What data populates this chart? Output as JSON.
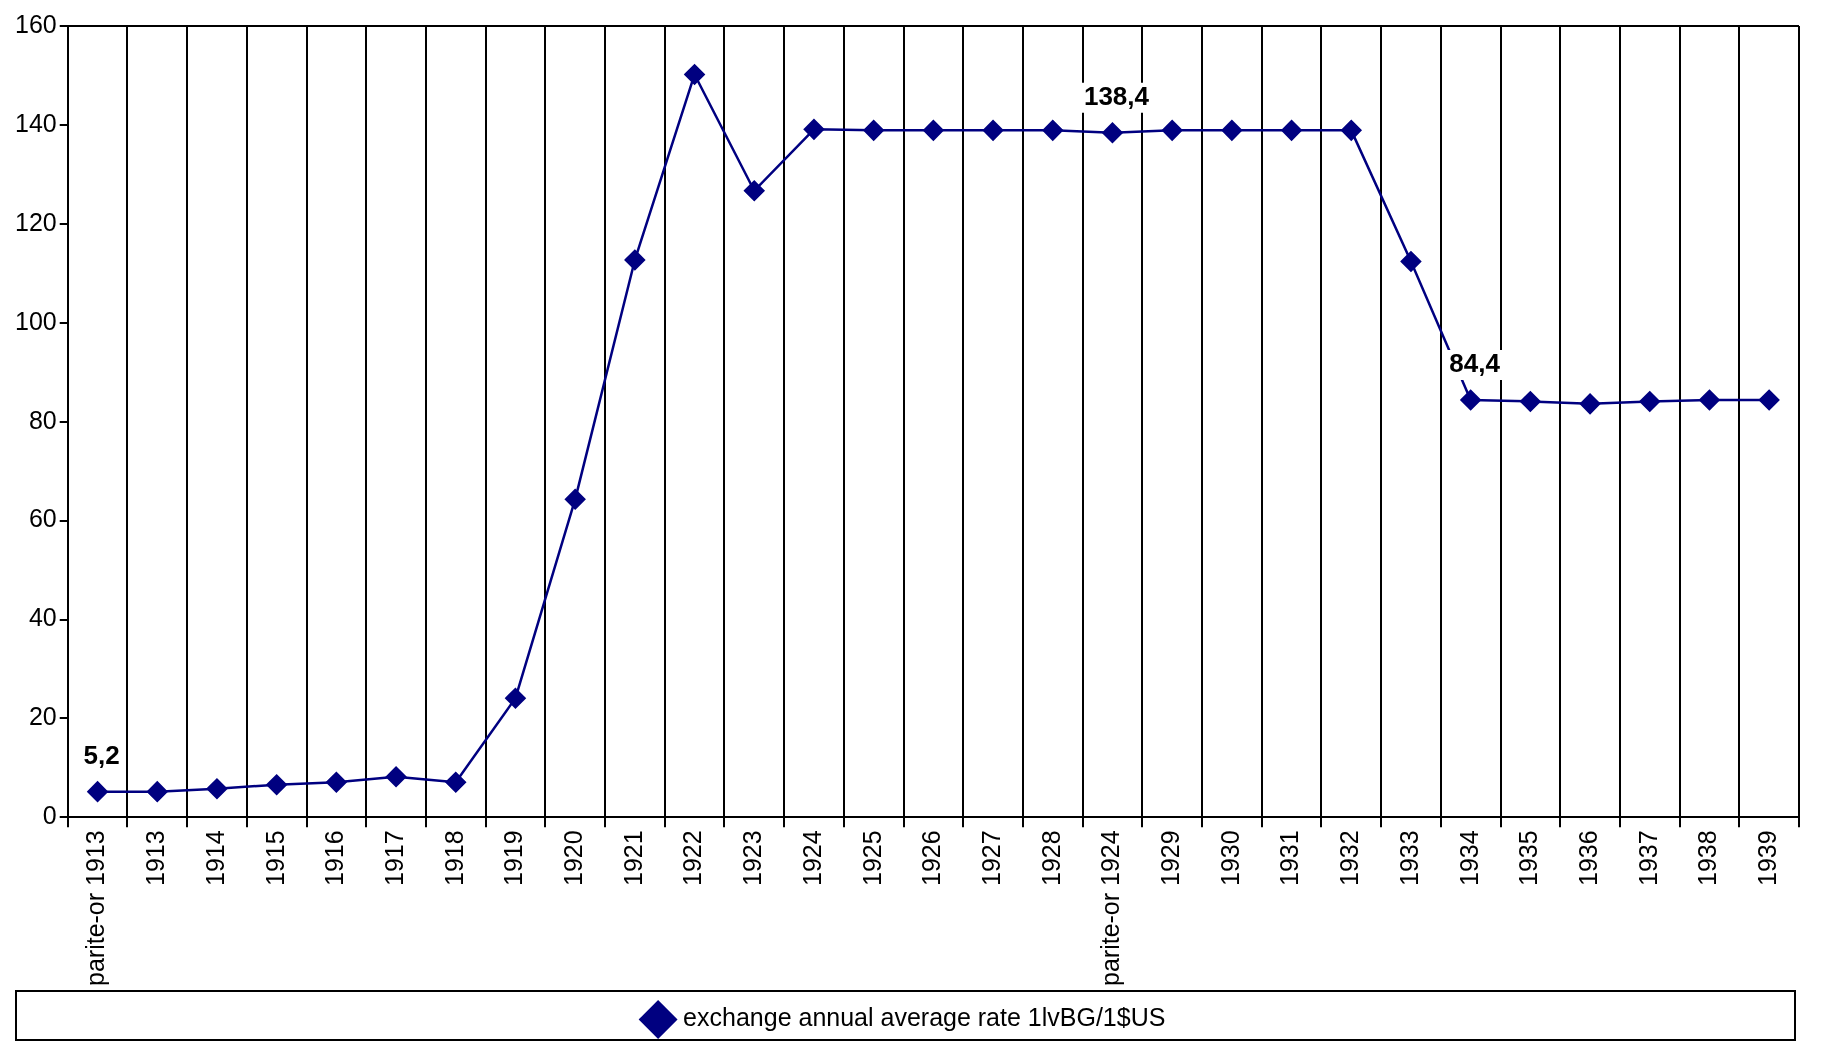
{
  "chart_data": {
    "type": "line",
    "categories": [
      "parite-or 1913",
      "1913",
      "1914",
      "1915",
      "1916",
      "1917",
      "1918",
      "1919",
      "1920",
      "1921",
      "1922",
      "1923",
      "1924",
      "1925",
      "1926",
      "1927",
      "1928",
      "parite-or 1924",
      "1929",
      "1930",
      "1931",
      "1932",
      "1933",
      "1934",
      "1935",
      "1936",
      "1937",
      "1938",
      "1939"
    ],
    "series": [
      {
        "name": "exchange annual average rate 1lvBG/1$US",
        "color": "#000080",
        "values": [
          5.2,
          5.2,
          5.8,
          6.6,
          7.1,
          8.2,
          7.1,
          24.1,
          64.3,
          112.7,
          150.2,
          126.7,
          139.1,
          138.9,
          138.9,
          138.9,
          138.9,
          138.4,
          138.9,
          138.9,
          138.9,
          138.9,
          112.4,
          84.4,
          84.1,
          83.6,
          84.1,
          84.4,
          84.4
        ],
        "value_labels": [
          "5,2",
          null,
          null,
          null,
          null,
          null,
          null,
          null,
          null,
          null,
          null,
          null,
          null,
          null,
          null,
          null,
          null,
          "138,4",
          null,
          null,
          null,
          null,
          null,
          "84,4",
          null,
          null,
          null,
          null,
          null
        ]
      }
    ],
    "ylim": [
      0,
      160
    ],
    "yticks": [
      0,
      20,
      40,
      60,
      80,
      100,
      120,
      140,
      160
    ],
    "grid": "x",
    "legend": "bottom",
    "marker": "diamond",
    "line_style": "solid"
  }
}
